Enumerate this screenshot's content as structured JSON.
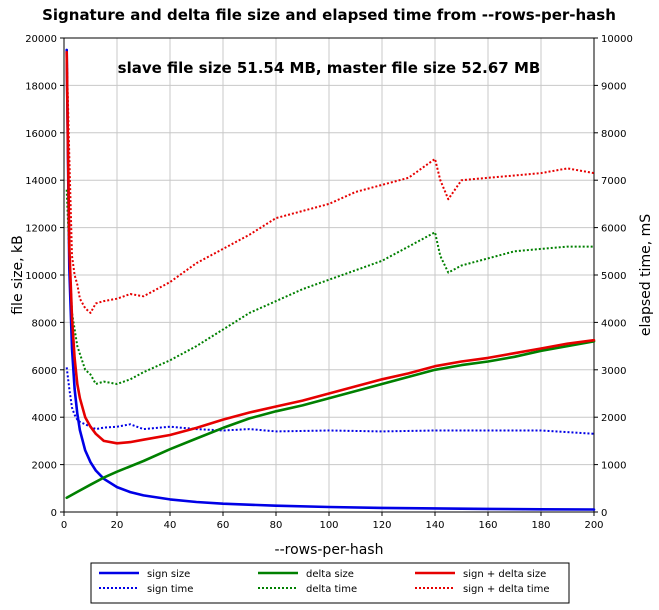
{
  "chart_data": {
    "type": "line",
    "title": "Signature and delta file size and elapsed time from --rows-per-hash",
    "subtitle": "slave file size 51.54 MB, master file size 52.67 MB",
    "xlabel": "--rows-per-hash",
    "ylabel_left": "file size, kB",
    "ylabel_right": "elapsed time, mS",
    "xlim": [
      0,
      200
    ],
    "ylim_left": [
      0,
      20000
    ],
    "ylim_right": [
      0,
      10000
    ],
    "grid": true,
    "legend_position": "bottom",
    "x_ticks": [
      0,
      20,
      40,
      60,
      80,
      100,
      120,
      140,
      160,
      180,
      200
    ],
    "y_ticks_left": [
      0,
      2000,
      4000,
      6000,
      8000,
      10000,
      12000,
      14000,
      16000,
      18000,
      20000
    ],
    "y_ticks_right": [
      0,
      1000,
      2000,
      3000,
      4000,
      5000,
      6000,
      7000,
      8000,
      9000,
      10000
    ],
    "series": [
      {
        "name": "sign size",
        "axis": "left",
        "style": "solid",
        "color": "#0000e6",
        "x": [
          1,
          2,
          3,
          4,
          5,
          6,
          8,
          10,
          12,
          15,
          20,
          25,
          30,
          40,
          50,
          60,
          80,
          100,
          120,
          140,
          160,
          180,
          200
        ],
        "y": [
          19500,
          10300,
          6900,
          5200,
          4150,
          3450,
          2600,
          2100,
          1750,
          1400,
          1050,
          840,
          700,
          530,
          420,
          350,
          265,
          210,
          175,
          150,
          130,
          115,
          105
        ]
      },
      {
        "name": "sign time",
        "axis": "right",
        "style": "dotted",
        "color": "#0000e6",
        "x": [
          1,
          2,
          3,
          4,
          5,
          6,
          8,
          10,
          12,
          15,
          20,
          25,
          30,
          40,
          50,
          60,
          70,
          80,
          100,
          120,
          140,
          160,
          180,
          200
        ],
        "y": [
          3050,
          2600,
          2200,
          2050,
          1950,
          1900,
          1850,
          1800,
          1750,
          1780,
          1800,
          1850,
          1750,
          1800,
          1750,
          1720,
          1750,
          1700,
          1720,
          1700,
          1720,
          1720,
          1720,
          1650
        ]
      },
      {
        "name": "delta size",
        "axis": "left",
        "style": "solid",
        "color": "#008000",
        "x": [
          1,
          5,
          10,
          15,
          20,
          30,
          40,
          50,
          60,
          70,
          80,
          90,
          100,
          110,
          120,
          130,
          140,
          150,
          160,
          170,
          180,
          190,
          200
        ],
        "y": [
          600,
          850,
          1150,
          1450,
          1700,
          2150,
          2650,
          3100,
          3550,
          3950,
          4250,
          4500,
          4800,
          5100,
          5400,
          5700,
          6000,
          6200,
          6350,
          6550,
          6800,
          7000,
          7200
        ]
      },
      {
        "name": "delta time",
        "axis": "right",
        "style": "dotted",
        "color": "#008000",
        "x": [
          1,
          2,
          3,
          5,
          8,
          10,
          12,
          15,
          20,
          25,
          30,
          40,
          50,
          60,
          70,
          80,
          90,
          100,
          110,
          120,
          130,
          140,
          142,
          145,
          150,
          160,
          170,
          180,
          190,
          200
        ],
        "y": [
          6800,
          5500,
          4200,
          3500,
          3000,
          2900,
          2700,
          2750,
          2700,
          2800,
          2950,
          3200,
          3500,
          3850,
          4200,
          4450,
          4700,
          4900,
          5100,
          5300,
          5600,
          5900,
          5400,
          5050,
          5200,
          5350,
          5500,
          5550,
          5600,
          5600
        ]
      },
      {
        "name": "sign + delta size",
        "axis": "left",
        "style": "solid",
        "color": "#e60000",
        "x": [
          1,
          2,
          3,
          4,
          5,
          6,
          8,
          10,
          12,
          15,
          20,
          25,
          30,
          40,
          50,
          60,
          70,
          80,
          90,
          100,
          110,
          120,
          130,
          140,
          150,
          160,
          170,
          180,
          190,
          200
        ],
        "y": [
          19400,
          11200,
          8200,
          6500,
          5400,
          4800,
          4000,
          3600,
          3300,
          3000,
          2900,
          2950,
          3050,
          3250,
          3550,
          3900,
          4200,
          4450,
          4700,
          5000,
          5300,
          5600,
          5850,
          6150,
          6350,
          6500,
          6700,
          6900,
          7100,
          7250
        ]
      },
      {
        "name": "sign + delta time",
        "axis": "right",
        "style": "dotted",
        "color": "#e60000",
        "x": [
          1,
          2,
          3,
          4,
          5,
          6,
          8,
          10,
          12,
          15,
          20,
          25,
          30,
          40,
          50,
          60,
          70,
          80,
          90,
          100,
          110,
          120,
          130,
          140,
          142,
          145,
          150,
          160,
          170,
          180,
          190,
          200
        ],
        "y": [
          9700,
          7500,
          5400,
          5000,
          4800,
          4500,
          4300,
          4200,
          4400,
          4450,
          4500,
          4600,
          4550,
          4850,
          5250,
          5550,
          5850,
          6200,
          6350,
          6500,
          6750,
          6900,
          7050,
          7450,
          7000,
          6600,
          7000,
          7050,
          7100,
          7150,
          7250,
          7150
        ]
      }
    ]
  }
}
